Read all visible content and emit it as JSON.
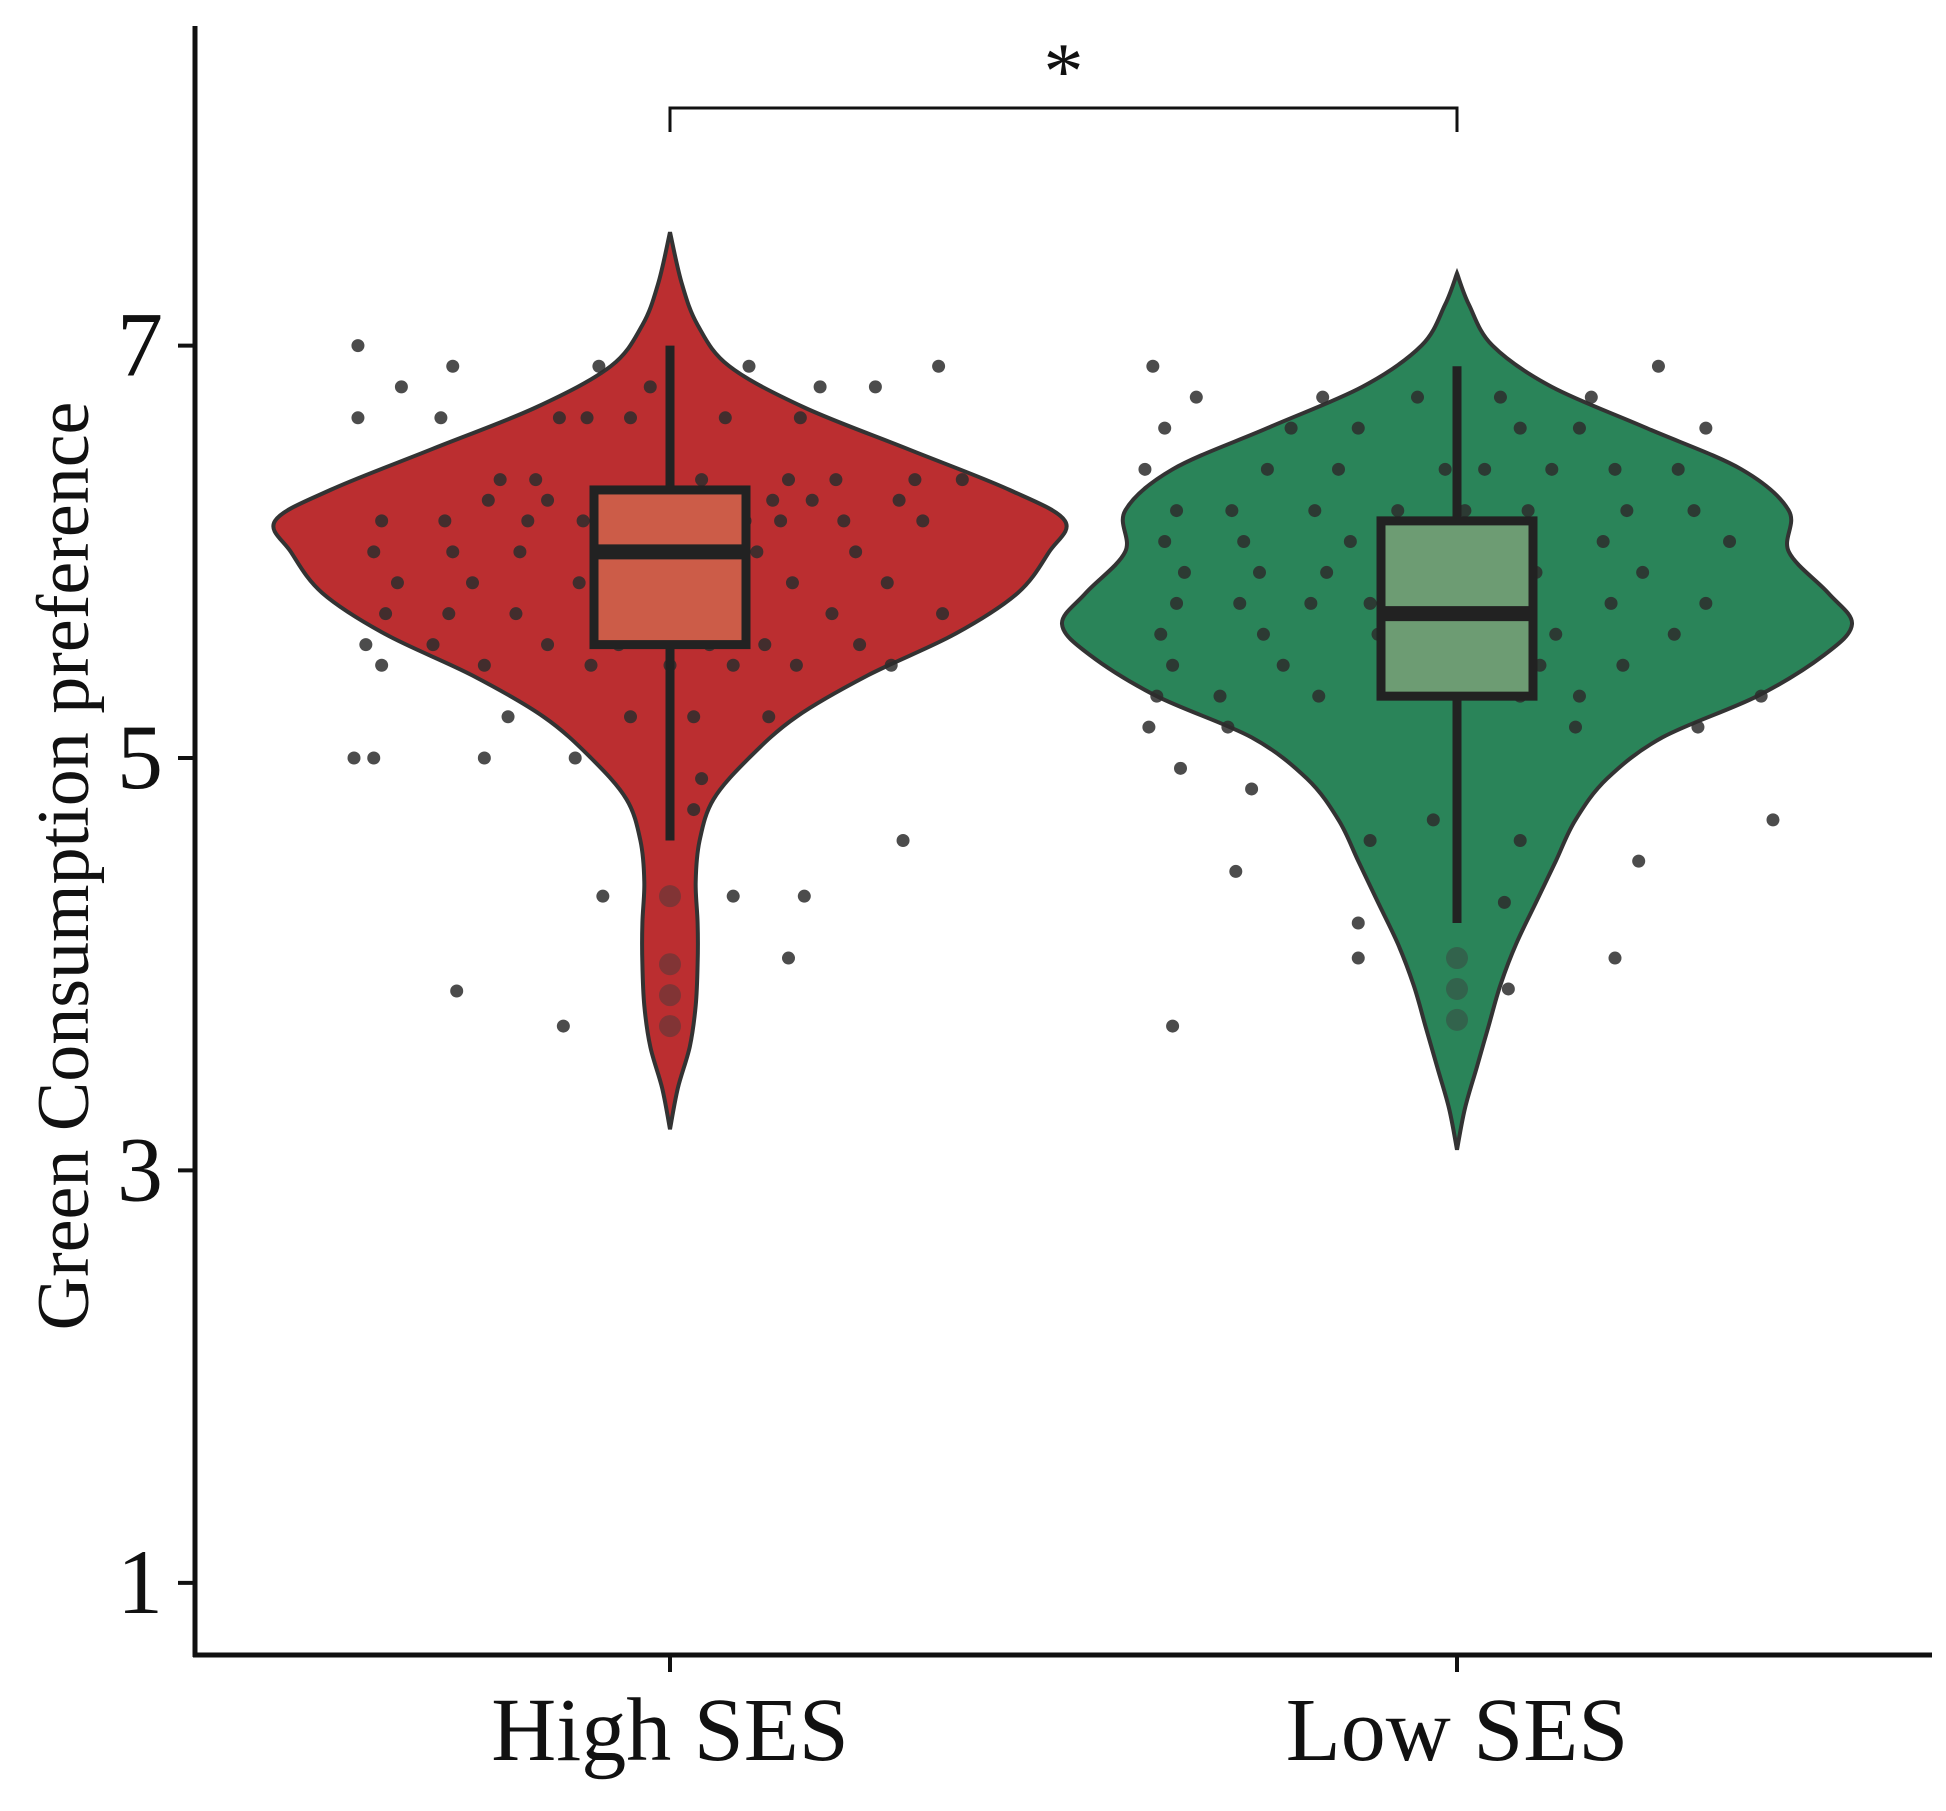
{
  "chart_data": {
    "type": "violin",
    "title": "",
    "xlabel": "",
    "ylabel": "Green Consumption preference",
    "ylim": [
      0.65,
      8.55
    ],
    "yticks": [
      1,
      3,
      5,
      7
    ],
    "grid": false,
    "legend": "none",
    "categories": [
      "High SES",
      "Low SES"
    ],
    "significance": {
      "between": [
        "High SES",
        "Low SES"
      ],
      "label": "*"
    },
    "series": [
      {
        "name": "High SES",
        "fill": "#bb2e30",
        "box_fill": "#cc5c48",
        "violin_range": [
          3.2,
          7.55
        ],
        "box": {
          "whisker_low": 4.6,
          "q1": 5.55,
          "median": 6.0,
          "q3": 6.3,
          "whisker_high": 7.0
        },
        "outliers": [
          4.33,
          4.0,
          3.85,
          3.7
        ],
        "density": [
          [
            3.2,
            0.0
          ],
          [
            3.4,
            0.02
          ],
          [
            3.6,
            0.05
          ],
          [
            3.8,
            0.065
          ],
          [
            4.0,
            0.07
          ],
          [
            4.2,
            0.07
          ],
          [
            4.4,
            0.065
          ],
          [
            4.6,
            0.075
          ],
          [
            4.8,
            0.11
          ],
          [
            5.0,
            0.2
          ],
          [
            5.2,
            0.32
          ],
          [
            5.4,
            0.5
          ],
          [
            5.6,
            0.72
          ],
          [
            5.8,
            0.88
          ],
          [
            6.0,
            0.96
          ],
          [
            6.15,
            1.0
          ],
          [
            6.3,
            0.86
          ],
          [
            6.5,
            0.6
          ],
          [
            6.7,
            0.34
          ],
          [
            6.9,
            0.15
          ],
          [
            7.1,
            0.07
          ],
          [
            7.3,
            0.03
          ],
          [
            7.55,
            0.0
          ]
        ],
        "points": [
          [
            -0.79,
            7.0
          ],
          [
            -0.55,
            6.9
          ],
          [
            -0.18,
            6.9
          ],
          [
            0.2,
            6.9
          ],
          [
            0.68,
            6.9
          ],
          [
            -0.68,
            6.8
          ],
          [
            -0.05,
            6.8
          ],
          [
            0.38,
            6.8
          ],
          [
            0.52,
            6.8
          ],
          [
            -0.79,
            6.65
          ],
          [
            -0.58,
            6.65
          ],
          [
            -0.28,
            6.65
          ],
          [
            -0.21,
            6.65
          ],
          [
            -0.1,
            6.65
          ],
          [
            0.14,
            6.65
          ],
          [
            0.33,
            6.65
          ],
          [
            -0.43,
            6.35
          ],
          [
            -0.34,
            6.35
          ],
          [
            0.08,
            6.35
          ],
          [
            0.3,
            6.35
          ],
          [
            0.42,
            6.35
          ],
          [
            0.62,
            6.35
          ],
          [
            0.74,
            6.35
          ],
          [
            -0.46,
            6.25
          ],
          [
            -0.31,
            6.25
          ],
          [
            0.02,
            6.25
          ],
          [
            0.15,
            6.25
          ],
          [
            0.26,
            6.25
          ],
          [
            0.36,
            6.25
          ],
          [
            0.58,
            6.25
          ],
          [
            -0.73,
            6.15
          ],
          [
            -0.57,
            6.15
          ],
          [
            -0.36,
            6.15
          ],
          [
            -0.22,
            6.15
          ],
          [
            -0.07,
            6.15
          ],
          [
            0.06,
            6.15
          ],
          [
            0.19,
            6.15
          ],
          [
            0.28,
            6.15
          ],
          [
            0.44,
            6.15
          ],
          [
            0.64,
            6.15
          ],
          [
            -0.75,
            6.0
          ],
          [
            -0.55,
            6.0
          ],
          [
            -0.38,
            6.0
          ],
          [
            -0.14,
            6.0
          ],
          [
            0.03,
            6.0
          ],
          [
            0.22,
            6.0
          ],
          [
            0.47,
            6.0
          ],
          [
            -0.69,
            5.85
          ],
          [
            -0.5,
            5.85
          ],
          [
            -0.23,
            5.85
          ],
          [
            -0.05,
            5.85
          ],
          [
            0.13,
            5.85
          ],
          [
            0.31,
            5.85
          ],
          [
            0.55,
            5.85
          ],
          [
            -0.72,
            5.7
          ],
          [
            -0.56,
            5.7
          ],
          [
            -0.39,
            5.7
          ],
          [
            -0.17,
            5.7
          ],
          [
            -0.09,
            5.7
          ],
          [
            0.04,
            5.7
          ],
          [
            0.18,
            5.7
          ],
          [
            0.41,
            5.7
          ],
          [
            0.69,
            5.7
          ],
          [
            -0.77,
            5.55
          ],
          [
            -0.6,
            5.55
          ],
          [
            -0.31,
            5.55
          ],
          [
            -0.13,
            5.55
          ],
          [
            0.1,
            5.55
          ],
          [
            0.24,
            5.55
          ],
          [
            0.48,
            5.55
          ],
          [
            -0.73,
            5.45
          ],
          [
            -0.47,
            5.45
          ],
          [
            -0.2,
            5.45
          ],
          [
            0.0,
            5.45
          ],
          [
            0.16,
            5.45
          ],
          [
            0.32,
            5.45
          ],
          [
            0.56,
            5.45
          ],
          [
            -0.41,
            5.2
          ],
          [
            -0.1,
            5.2
          ],
          [
            0.06,
            5.2
          ],
          [
            0.25,
            5.2
          ],
          [
            -0.8,
            5.0
          ],
          [
            -0.75,
            5.0
          ],
          [
            -0.47,
            5.0
          ],
          [
            -0.24,
            5.0
          ],
          [
            0.08,
            4.9
          ],
          [
            0.06,
            4.75
          ],
          [
            0.59,
            4.6
          ],
          [
            -0.17,
            4.33
          ],
          [
            0.16,
            4.33
          ],
          [
            0.34,
            4.33
          ],
          [
            -0.54,
            3.87
          ],
          [
            0.3,
            4.03
          ],
          [
            -0.27,
            3.7
          ]
        ]
      },
      {
        "name": "Low SES",
        "fill": "#2a8459",
        "box_fill": "#6d9c73",
        "violin_range": [
          3.1,
          7.35
        ],
        "box": {
          "whisker_low": 4.2,
          "q1": 5.3,
          "median": 5.7,
          "q3": 6.15,
          "whisker_high": 6.9
        },
        "outliers": [
          4.03,
          3.88,
          3.73
        ],
        "density": [
          [
            3.1,
            0.0
          ],
          [
            3.3,
            0.02
          ],
          [
            3.5,
            0.05
          ],
          [
            3.7,
            0.08
          ],
          [
            3.9,
            0.11
          ],
          [
            4.1,
            0.15
          ],
          [
            4.3,
            0.2
          ],
          [
            4.5,
            0.25
          ],
          [
            4.7,
            0.3
          ],
          [
            4.9,
            0.38
          ],
          [
            5.1,
            0.52
          ],
          [
            5.3,
            0.76
          ],
          [
            5.5,
            0.93
          ],
          [
            5.65,
            1.0
          ],
          [
            5.8,
            0.94
          ],
          [
            6.0,
            0.84
          ],
          [
            6.2,
            0.84
          ],
          [
            6.4,
            0.72
          ],
          [
            6.6,
            0.48
          ],
          [
            6.8,
            0.24
          ],
          [
            7.0,
            0.09
          ],
          [
            7.2,
            0.03
          ],
          [
            7.35,
            0.0
          ]
        ],
        "points": [
          [
            -0.77,
            6.9
          ],
          [
            0.51,
            6.9
          ],
          [
            -0.66,
            6.75
          ],
          [
            -0.34,
            6.75
          ],
          [
            -0.1,
            6.75
          ],
          [
            0.11,
            6.75
          ],
          [
            0.34,
            6.75
          ],
          [
            -0.74,
            6.6
          ],
          [
            -0.42,
            6.6
          ],
          [
            -0.25,
            6.6
          ],
          [
            0.16,
            6.6
          ],
          [
            0.31,
            6.6
          ],
          [
            0.63,
            6.6
          ],
          [
            -0.79,
            6.4
          ],
          [
            -0.48,
            6.4
          ],
          [
            -0.3,
            6.4
          ],
          [
            -0.03,
            6.4
          ],
          [
            0.07,
            6.4
          ],
          [
            0.24,
            6.4
          ],
          [
            0.4,
            6.4
          ],
          [
            0.56,
            6.4
          ],
          [
            -0.71,
            6.2
          ],
          [
            -0.57,
            6.2
          ],
          [
            -0.36,
            6.2
          ],
          [
            -0.15,
            6.2
          ],
          [
            0.02,
            6.2
          ],
          [
            0.18,
            6.2
          ],
          [
            0.43,
            6.2
          ],
          [
            0.6,
            6.2
          ],
          [
            -0.74,
            6.05
          ],
          [
            -0.54,
            6.05
          ],
          [
            -0.27,
            6.05
          ],
          [
            -0.07,
            6.05
          ],
          [
            0.12,
            6.05
          ],
          [
            0.37,
            6.05
          ],
          [
            0.69,
            6.05
          ],
          [
            -0.69,
            5.9
          ],
          [
            -0.5,
            5.9
          ],
          [
            -0.33,
            5.9
          ],
          [
            -0.06,
            5.9
          ],
          [
            0.2,
            5.9
          ],
          [
            0.47,
            5.9
          ],
          [
            -0.71,
            5.75
          ],
          [
            -0.55,
            5.75
          ],
          [
            -0.37,
            5.75
          ],
          [
            -0.22,
            5.75
          ],
          [
            -0.04,
            5.75
          ],
          [
            0.14,
            5.75
          ],
          [
            0.39,
            5.75
          ],
          [
            0.63,
            5.75
          ],
          [
            -0.75,
            5.6
          ],
          [
            -0.49,
            5.6
          ],
          [
            -0.2,
            5.6
          ],
          [
            0.01,
            5.6
          ],
          [
            0.25,
            5.6
          ],
          [
            0.55,
            5.6
          ],
          [
            -0.72,
            5.45
          ],
          [
            -0.44,
            5.45
          ],
          [
            -0.12,
            5.45
          ],
          [
            0.07,
            5.45
          ],
          [
            0.21,
            5.45
          ],
          [
            0.42,
            5.45
          ],
          [
            -0.76,
            5.3
          ],
          [
            -0.6,
            5.3
          ],
          [
            -0.35,
            5.3
          ],
          [
            0.16,
            5.3
          ],
          [
            0.31,
            5.3
          ],
          [
            0.77,
            5.3
          ],
          [
            -0.78,
            5.15
          ],
          [
            -0.58,
            5.15
          ],
          [
            0.3,
            5.15
          ],
          [
            0.61,
            5.15
          ],
          [
            -0.7,
            4.95
          ],
          [
            -0.52,
            4.85
          ],
          [
            -0.06,
            4.7
          ],
          [
            -0.22,
            4.6
          ],
          [
            0.16,
            4.6
          ],
          [
            0.46,
            4.5
          ],
          [
            -0.56,
            4.45
          ],
          [
            0.12,
            4.3
          ],
          [
            -0.25,
            4.2
          ],
          [
            0.4,
            4.03
          ],
          [
            -0.25,
            4.03
          ],
          [
            0.13,
            3.88
          ],
          [
            -0.72,
            3.7
          ],
          [
            0.8,
            4.7
          ]
        ]
      }
    ]
  }
}
